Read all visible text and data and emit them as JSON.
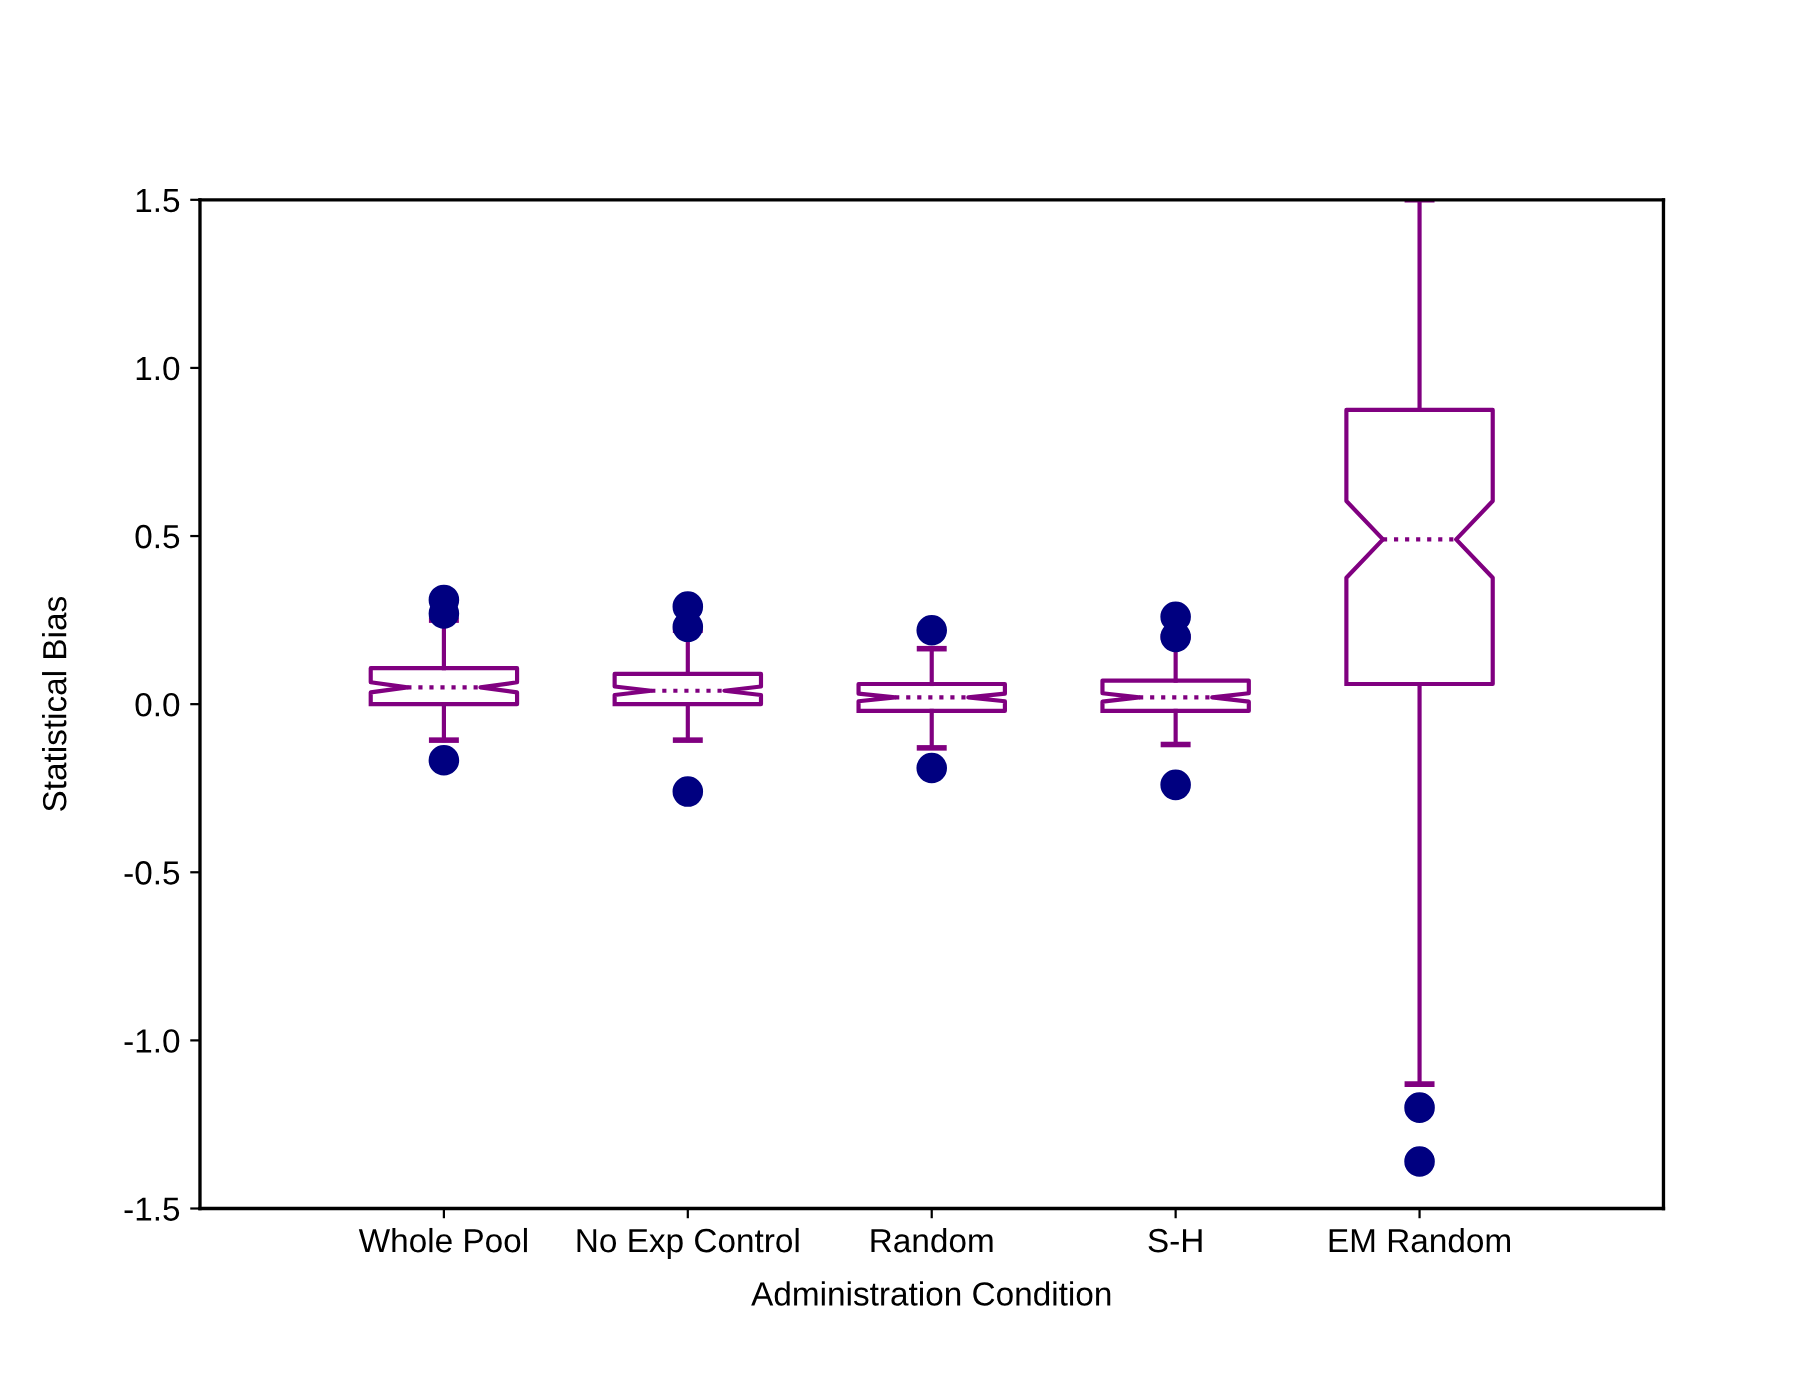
{
  "chart_data": {
    "type": "box",
    "xlabel": "Administration Condition",
    "ylabel": "Statistical Bias",
    "categories": [
      "Whole Pool",
      "No Exp Control",
      "Random",
      "S-H",
      "EM Random"
    ],
    "series": [
      {
        "color": "#800080",
        "boxes": [
          {
            "low": -0.107,
            "q1": 0.0,
            "median": 0.05,
            "q3": 0.107,
            "high": 0.25
          },
          {
            "low": -0.107,
            "q1": 0.0,
            "median": 0.04,
            "q3": 0.09,
            "high": 0.22
          },
          {
            "low": -0.13,
            "q1": -0.02,
            "median": 0.02,
            "q3": 0.06,
            "high": 0.165
          },
          {
            "low": -0.12,
            "q1": -0.02,
            "median": 0.02,
            "q3": 0.07,
            "high": 0.2
          },
          {
            "low": -1.13,
            "q1": 0.06,
            "median": 0.49,
            "q3": 0.875,
            "high": 1.5
          }
        ]
      },
      {
        "type": "scatter",
        "color": "#000080",
        "marker": "circle",
        "x": [
          "Whole Pool",
          "Whole Pool",
          "Whole Pool",
          "No Exp Control",
          "No Exp Control",
          "No Exp Control",
          "Random",
          "Random",
          "S-H",
          "S-H",
          "S-H",
          "EM Random",
          "EM Random"
        ],
        "values": [
          0.31,
          0.27,
          -0.167,
          0.29,
          0.23,
          -0.26,
          0.22,
          -0.19,
          0.26,
          0.2,
          -0.24,
          -1.2,
          -1.36
        ]
      }
    ],
    "ylim": [
      -1.5,
      1.5
    ],
    "yticks": [
      {
        "value": 1.5,
        "label": "1.5"
      },
      {
        "value": 1.0,
        "label": "1.0"
      },
      {
        "value": 0.5,
        "label": "0.5"
      },
      {
        "value": 0.0,
        "label": "0.0"
      },
      {
        "value": -0.5,
        "label": "-0.5"
      },
      {
        "value": -1.0,
        "label": "-1.0"
      },
      {
        "value": -1.5,
        "label": "-1.5"
      }
    ],
    "grid": false
  }
}
